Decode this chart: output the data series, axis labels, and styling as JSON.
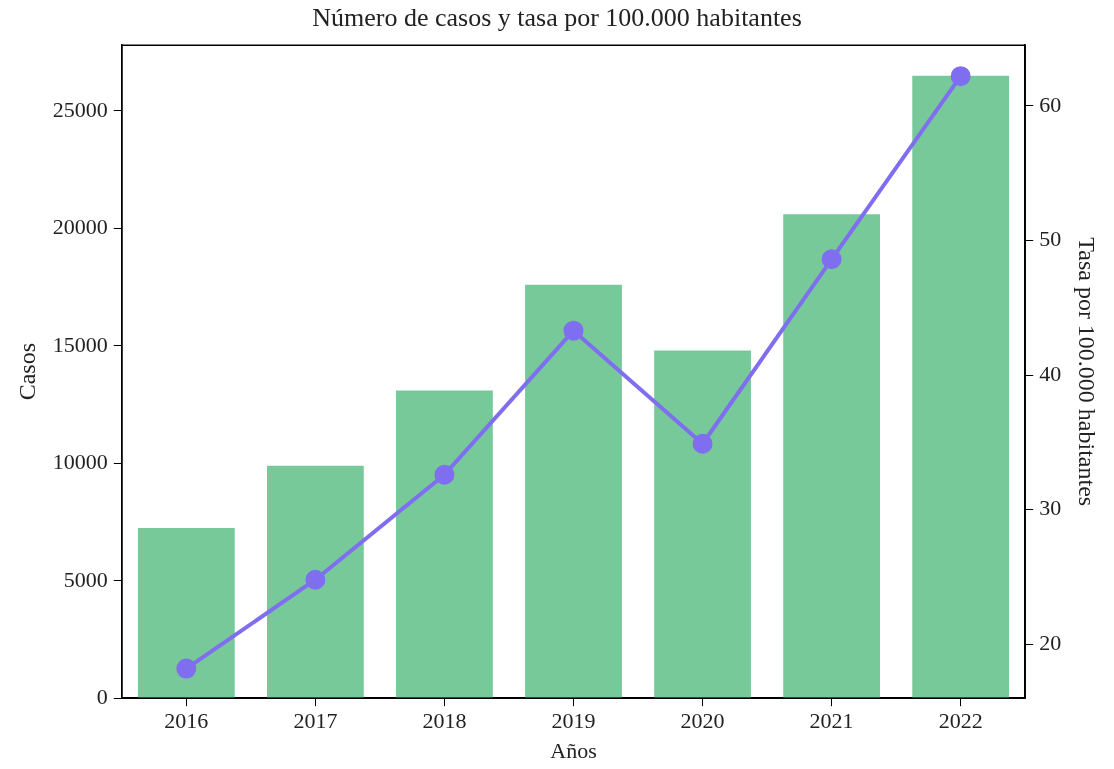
{
  "chart_data": {
    "type": "bar",
    "title": "Número de casos y tasa por 100.000 habitantes",
    "xlabel": "Años",
    "ylabel": "Casos",
    "y2label": "Tasa por 100.000 habitantes",
    "categories": [
      "2016",
      "2017",
      "2018",
      "2019",
      "2020",
      "2021",
      "2022"
    ],
    "series": [
      {
        "color": "#77c99a",
        "values": [
          7250,
          9900,
          13100,
          17600,
          14800,
          20600,
          26500
        ]
      },
      {
        "type": "line",
        "axis": "y2",
        "color": "#7f6ff0",
        "values": [
          18.2,
          24.8,
          32.6,
          43.3,
          34.9,
          48.6,
          62.2
        ]
      }
    ],
    "ylim": [
      0,
      27800
    ],
    "yticks": [
      0,
      5000,
      10000,
      15000,
      20000,
      25000
    ],
    "y2lim": [
      16,
      64.5
    ],
    "y2ticks": [
      20,
      30,
      40,
      50,
      60
    ],
    "grid": false,
    "legend": false,
    "marker": "circle",
    "line_style": "solid"
  }
}
